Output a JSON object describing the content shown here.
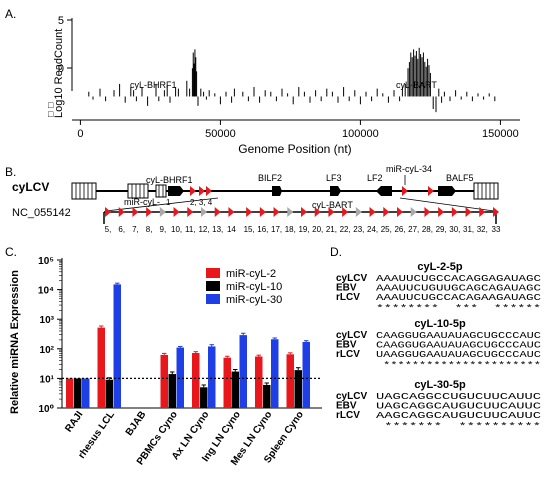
{
  "panelA": {
    "label": "A.",
    "ylabel": "Log10 ReadCount",
    "xlabel": "Genome Position (nt)",
    "legend_symbols": [
      "□",
      "□"
    ],
    "annotations": [
      "cyL-BHRF1",
      "cyL-BART"
    ],
    "chart_data": {
      "type": "bar",
      "title": "",
      "xlabel": "Genome Position (nt)",
      "ylabel": "Log10 ReadCount",
      "xlim": [
        -3000,
        157000
      ],
      "ylim": [
        -1.5,
        5
      ],
      "xticks": [
        0,
        50000,
        100000,
        150000
      ],
      "xtick_labels": [
        "0",
        "50000",
        "100000",
        "150000"
      ],
      "yticks": [
        0,
        5
      ],
      "ytick_labels": [
        "0",
        "5"
      ],
      "grid": false,
      "series": [
        {
          "points": [
            [
              3000,
              0.3
            ],
            [
              4500,
              -0.2
            ],
            [
              7000,
              0.5
            ],
            [
              9000,
              -0.3
            ],
            [
              12000,
              0.4
            ],
            [
              14000,
              0.8
            ],
            [
              16000,
              -0.4
            ],
            [
              18000,
              0.6
            ],
            [
              19000,
              0.4
            ],
            [
              20000,
              -0.3
            ],
            [
              22000,
              0.6
            ],
            [
              24000,
              -0.6
            ],
            [
              27000,
              0.8
            ],
            [
              28000,
              -0.3
            ],
            [
              30000,
              0.4
            ],
            [
              31000,
              0.7
            ],
            [
              32000,
              -0.4
            ],
            [
              34000,
              0.6
            ],
            [
              35000,
              0.5
            ],
            [
              38000,
              1.0
            ],
            [
              39000,
              0.5
            ],
            [
              40000,
              1.8
            ],
            [
              40300,
              2.8
            ],
            [
              40600,
              2.1
            ],
            [
              40900,
              3.0
            ],
            [
              41200,
              2.5
            ],
            [
              41500,
              1.6
            ],
            [
              42000,
              -0.6
            ],
            [
              43000,
              0.5
            ],
            [
              44000,
              0.3
            ],
            [
              45000,
              -0.2
            ],
            [
              46000,
              0.4
            ],
            [
              48000,
              0.2
            ],
            [
              50000,
              -0.5
            ],
            [
              52000,
              0.3
            ],
            [
              54000,
              -0.4
            ],
            [
              55000,
              0.5
            ],
            [
              58000,
              0.3
            ],
            [
              60000,
              -0.3
            ],
            [
              62000,
              0.6
            ],
            [
              64000,
              -0.4
            ],
            [
              66000,
              0.4
            ],
            [
              68000,
              0.3
            ],
            [
              70000,
              -0.3
            ],
            [
              72000,
              0.5
            ],
            [
              74000,
              0.2
            ],
            [
              76000,
              -0.5
            ],
            [
              78000,
              0.6
            ],
            [
              80000,
              0.3
            ],
            [
              82000,
              -0.4
            ],
            [
              84000,
              0.4
            ],
            [
              86000,
              -0.3
            ],
            [
              88000,
              0.5
            ],
            [
              90000,
              0.3
            ],
            [
              92000,
              -0.4
            ],
            [
              94000,
              0.6
            ],
            [
              96000,
              -0.3
            ],
            [
              98000,
              0.4
            ],
            [
              100000,
              -0.5
            ],
            [
              102000,
              0.3
            ],
            [
              104000,
              -0.3
            ],
            [
              106000,
              0.5
            ],
            [
              108000,
              0.2
            ],
            [
              110000,
              -0.4
            ],
            [
              112000,
              0.4
            ],
            [
              114000,
              -0.3
            ],
            [
              115000,
              0.6
            ],
            [
              116000,
              0.8
            ],
            [
              117000,
              1.8
            ],
            [
              117500,
              2.2
            ],
            [
              118000,
              2.8
            ],
            [
              118500,
              2.5
            ],
            [
              119000,
              3.0
            ],
            [
              119500,
              2.6
            ],
            [
              120000,
              2.9
            ],
            [
              120500,
              2.4
            ],
            [
              121000,
              3.1
            ],
            [
              121500,
              2.7
            ],
            [
              122000,
              2.5
            ],
            [
              122500,
              2.8
            ],
            [
              123000,
              2.2
            ],
            [
              123500,
              1.9
            ],
            [
              124000,
              2.4
            ],
            [
              124500,
              2.0
            ],
            [
              125000,
              1.5
            ],
            [
              126000,
              -0.8
            ],
            [
              127000,
              -1.0
            ],
            [
              128000,
              0.5
            ],
            [
              129000,
              -0.4
            ],
            [
              130000,
              0.3
            ],
            [
              132000,
              -0.3
            ],
            [
              134000,
              0.4
            ],
            [
              136000,
              -0.2
            ],
            [
              138000,
              0.3
            ],
            [
              140000,
              -0.3
            ],
            [
              142000,
              0.2
            ],
            [
              144000,
              -0.2
            ],
            [
              146000,
              0.2
            ],
            [
              148000,
              -0.3
            ]
          ]
        }
      ]
    }
  },
  "panelB": {
    "label": "B.",
    "genome_name": "cyLCV",
    "accession": "NC_055142",
    "gene_labels": [
      "BILF2",
      "LF3",
      "LF2",
      "BALF5"
    ],
    "mirna_labels": [
      "cyL-BHRF1",
      "miR-cyL-",
      "miR-cyL-34",
      "cyL-BART"
    ],
    "bhrf1_numbers": [
      "1",
      "2, 3, 4"
    ],
    "bart_numbers": [
      "5,",
      "6,",
      "7,",
      "8,",
      "9,",
      "10,",
      "11,",
      "12,",
      "13,",
      "14",
      "15,",
      "16,",
      "17,",
      "18,",
      "19,",
      "20,",
      "21,",
      "22,",
      "23,",
      "24,",
      "25,",
      "26,",
      "27,",
      "28,",
      "29,",
      "30,",
      "31,",
      "32,",
      "33"
    ],
    "bart_colors": [
      "red",
      "red",
      "red",
      "red",
      "grey",
      "red",
      "red",
      "grey",
      "red",
      "red",
      "red",
      "red",
      "red",
      "grey",
      "red",
      "red",
      "red",
      "red",
      "grey",
      "red",
      "red",
      "red",
      "grey",
      "red",
      "red",
      "red",
      "red",
      "red",
      "red"
    ],
    "colors": {
      "red": "#e8171c",
      "grey": "#a9a9a9"
    }
  },
  "panelC": {
    "label": "C.",
    "chart_data": {
      "type": "bar",
      "title": "",
      "xlabel": "",
      "ylabel": "Relative miRNA Expression",
      "yscale": "log",
      "ylim": [
        1,
        100000
      ],
      "ytick_labels": [
        "10⁰",
        "10¹",
        "10²",
        "10³",
        "10⁴",
        "10⁵"
      ],
      "categories": [
        "RAJI",
        "rhesus LCL",
        "BJAB",
        "PBMCs Cyno",
        "Ax LN Cyno",
        "Ing LN Cyno",
        "Mes LN Cyno",
        "Spleen Cyno"
      ],
      "reference_line": 10,
      "legend_position": "top-right",
      "series": [
        {
          "name": "miR-cyL-2",
          "color": "#e8171c",
          "values": [
            10,
            520,
            null,
            62,
            72,
            50,
            55,
            65
          ]
        },
        {
          "name": "miR-cyL-10",
          "color": "#000000",
          "values": [
            10,
            9,
            null,
            14,
            5,
            17,
            6,
            19
          ]
        },
        {
          "name": "miR-cyL-30",
          "color": "#1f3fe6",
          "values": [
            10,
            15000,
            null,
            110,
            120,
            290,
            210,
            170
          ]
        }
      ],
      "errors": [
        [
          0,
          70,
          null,
          8,
          8,
          6,
          6,
          8
        ],
        [
          0,
          1.5,
          null,
          2.5,
          1,
          3,
          1,
          4
        ],
        [
          0,
          1500,
          null,
          10,
          18,
          45,
          22,
          18
        ]
      ]
    }
  },
  "panelD": {
    "label": "D.",
    "blocks": [
      {
        "title": "cyL-2-5p",
        "rows": [
          {
            "name": "cyLCV",
            "seq": "AAAUUCUGCCACAGGAGAUAGC"
          },
          {
            "name": "EBV",
            "seq": "AAAUUCUGUUGCAGCAGAUAGC"
          },
          {
            "name": "rLCV",
            "seq": "AAAUUCUGCCACAGAAGAUAGC"
          }
        ],
        "stars": "********  ***  ******"
      },
      {
        "title": "cyL-10-5p",
        "rows": [
          {
            "name": "cyLCV",
            "seq": "CAAGGUGAAUAUAGCUGCCCAUC"
          },
          {
            "name": "EBV",
            "seq": "CAAGGUGAAUAUAGCUGCCCAUC"
          },
          {
            "name": "rLCV",
            "seq": "UAAGGUGAAUAUAGCUGCCCAUC"
          }
        ],
        "stars": " **********************"
      },
      {
        "title": "cyL-30-5p",
        "rows": [
          {
            "name": "cyLCV",
            "seq": "UAGCAGGCCUGUCUUCAUUC"
          },
          {
            "name": "EBV",
            "seq": "UAGCAGGCAUGUCUUCAUUC"
          },
          {
            "name": "rLCV",
            "seq": "AAGCAGGCAUGUCUUCAUUC"
          }
        ],
        "stars": " *******  **********"
      }
    ]
  }
}
